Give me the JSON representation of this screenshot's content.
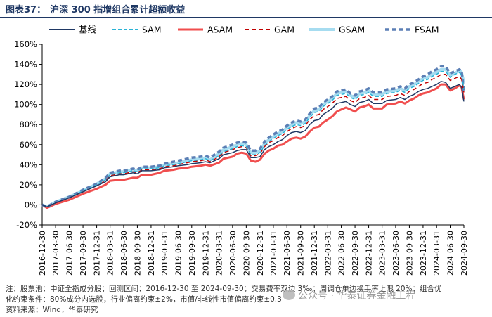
{
  "figure": {
    "number": "图表37：",
    "title": "沪深 300 指增组合累计超额收益"
  },
  "notes": [
    "注：股票池：中证全指成分股；回测区间：2016-12-30 至 2024-09-30；交易费率双边 3‰；周调仓单边换手率上限 20%；组合优",
    "化约束条件：80%成分内选股，行业偏离约束±2%，市值/非线性市值偏离约束±0.3",
    "资料来源：Wind，华泰研究"
  ],
  "watermark": "公众号 · 华泰证券金融工程",
  "chart_data": {
    "type": "line",
    "ylim": [
      -0.2,
      1.6
    ],
    "yticks": [
      -0.2,
      0.0,
      0.2,
      0.4,
      0.6,
      0.8,
      1.0,
      1.2,
      1.4,
      1.6
    ],
    "ytick_labels": [
      "-20%",
      "0%",
      "20%",
      "40%",
      "60%",
      "80%",
      "100%",
      "120%",
      "140%",
      "160%"
    ],
    "x_start": "2016-12-30",
    "x_end": "2024-09-30",
    "xtick_labels": [
      "2016-12-30",
      "2017-03-30",
      "2017-06-30",
      "2017-09-30",
      "2017-12-31",
      "2018-03-31",
      "2018-06-30",
      "2018-09-30",
      "2018-12-31",
      "2019-03-31",
      "2019-06-30",
      "2019-09-30",
      "2019-12-31",
      "2020-03-31",
      "2020-06-30",
      "2020-09-30",
      "2020-12-31",
      "2021-03-31",
      "2021-06-30",
      "2021-09-30",
      "2021-12-31",
      "2022-03-31",
      "2022-06-30",
      "2022-09-30",
      "2022-12-31",
      "2023-03-31",
      "2023-06-30",
      "2023-09-30",
      "2023-12-31",
      "2024-03-31",
      "2024-06-30",
      "2024-09-30"
    ],
    "legend_position": "top",
    "grid": false,
    "base_dates": [
      "2016-12-30",
      "2017-01-31",
      "2017-03-31",
      "2017-06-30",
      "2017-09-30",
      "2017-12-31",
      "2018-02-28",
      "2018-03-31",
      "2018-05-31",
      "2018-06-30",
      "2018-08-31",
      "2018-09-30",
      "2018-10-31",
      "2018-12-31",
      "2019-02-28",
      "2019-03-31",
      "2019-05-31",
      "2019-06-30",
      "2019-08-31",
      "2019-09-30",
      "2019-11-30",
      "2019-12-31",
      "2020-01-31",
      "2020-03-31",
      "2020-04-30",
      "2020-06-30",
      "2020-07-31",
      "2020-08-31",
      "2020-09-30",
      "2020-10-31",
      "2020-11-30",
      "2020-12-31",
      "2021-01-31",
      "2021-02-28",
      "2021-03-31",
      "2021-04-30",
      "2021-05-31",
      "2021-06-30",
      "2021-07-31",
      "2021-08-31",
      "2021-09-30",
      "2021-10-31",
      "2021-11-30",
      "2021-12-31",
      "2022-01-31",
      "2022-02-28",
      "2022-03-31",
      "2022-04-30",
      "2022-05-31",
      "2022-06-30",
      "2022-07-31",
      "2022-08-31",
      "2022-09-30",
      "2022-10-31",
      "2022-11-30",
      "2022-12-31",
      "2023-01-31",
      "2023-03-31",
      "2023-04-30",
      "2023-06-30",
      "2023-07-31",
      "2023-08-31",
      "2023-09-30",
      "2023-10-31",
      "2023-11-30",
      "2023-12-31",
      "2024-01-31",
      "2024-02-29",
      "2024-03-31",
      "2024-04-30",
      "2024-05-31",
      "2024-06-30",
      "2024-07-31",
      "2024-08-31",
      "2024-09-15",
      "2024-09-30"
    ],
    "series": [
      {
        "name": "基线",
        "color": "#1f3864",
        "style": "solid",
        "values": [
          0.0,
          -0.02,
          0.02,
          0.07,
          0.13,
          0.19,
          0.23,
          0.28,
          0.3,
          0.3,
          0.32,
          0.31,
          0.34,
          0.34,
          0.35,
          0.37,
          0.38,
          0.39,
          0.4,
          0.41,
          0.42,
          0.43,
          0.42,
          0.46,
          0.5,
          0.52,
          0.54,
          0.55,
          0.55,
          0.47,
          0.47,
          0.48,
          0.55,
          0.58,
          0.6,
          0.63,
          0.65,
          0.69,
          0.72,
          0.73,
          0.72,
          0.74,
          0.8,
          0.84,
          0.85,
          0.9,
          0.93,
          0.96,
          1.01,
          1.02,
          1.03,
          1.0,
          0.98,
          1.02,
          1.03,
          1.05,
          1.01,
          1.01,
          1.04,
          1.05,
          1.07,
          1.05,
          1.08,
          1.1,
          1.13,
          1.15,
          1.16,
          1.18,
          1.2,
          1.23,
          1.22,
          1.16,
          1.18,
          1.2,
          1.17,
          1.03
        ]
      },
      {
        "name": "SAM",
        "color": "#2ab3d6",
        "style": "dash",
        "dash": "5,3",
        "values": [
          0.0,
          -0.02,
          0.02,
          0.07,
          0.14,
          0.2,
          0.25,
          0.3,
          0.32,
          0.32,
          0.34,
          0.33,
          0.36,
          0.36,
          0.37,
          0.39,
          0.4,
          0.41,
          0.43,
          0.44,
          0.45,
          0.46,
          0.44,
          0.49,
          0.53,
          0.56,
          0.58,
          0.59,
          0.58,
          0.5,
          0.5,
          0.52,
          0.59,
          0.63,
          0.66,
          0.69,
          0.71,
          0.75,
          0.78,
          0.8,
          0.79,
          0.81,
          0.87,
          0.92,
          0.93,
          0.98,
          1.01,
          1.04,
          1.09,
          1.1,
          1.11,
          1.07,
          1.05,
          1.09,
          1.1,
          1.12,
          1.08,
          1.08,
          1.11,
          1.12,
          1.14,
          1.12,
          1.16,
          1.18,
          1.21,
          1.24,
          1.25,
          1.28,
          1.3,
          1.33,
          1.33,
          1.27,
          1.3,
          1.32,
          1.29,
          1.16
        ]
      },
      {
        "name": "ASAM",
        "color": "#f04e4e",
        "style": "solid",
        "width": 3,
        "values": [
          0.0,
          -0.03,
          0.01,
          0.05,
          0.11,
          0.16,
          0.2,
          0.24,
          0.25,
          0.25,
          0.27,
          0.27,
          0.3,
          0.3,
          0.32,
          0.34,
          0.35,
          0.36,
          0.37,
          0.38,
          0.39,
          0.4,
          0.39,
          0.42,
          0.46,
          0.48,
          0.51,
          0.52,
          0.51,
          0.44,
          0.43,
          0.45,
          0.51,
          0.54,
          0.56,
          0.59,
          0.6,
          0.63,
          0.66,
          0.67,
          0.66,
          0.68,
          0.73,
          0.77,
          0.78,
          0.82,
          0.85,
          0.88,
          0.93,
          0.95,
          0.97,
          0.95,
          0.93,
          0.97,
          0.98,
          1.0,
          0.96,
          0.96,
          1.0,
          1.01,
          1.03,
          1.01,
          1.04,
          1.06,
          1.09,
          1.11,
          1.12,
          1.14,
          1.16,
          1.2,
          1.2,
          1.14,
          1.16,
          1.19,
          1.17,
          1.05
        ]
      },
      {
        "name": "GAM",
        "color": "#c00000",
        "style": "dash",
        "dash": "6,4",
        "values": [
          0.0,
          -0.02,
          0.02,
          0.07,
          0.13,
          0.19,
          0.24,
          0.29,
          0.31,
          0.31,
          0.33,
          0.32,
          0.35,
          0.35,
          0.36,
          0.38,
          0.39,
          0.4,
          0.42,
          0.43,
          0.44,
          0.45,
          0.43,
          0.48,
          0.52,
          0.55,
          0.57,
          0.58,
          0.57,
          0.49,
          0.49,
          0.51,
          0.58,
          0.62,
          0.64,
          0.67,
          0.69,
          0.73,
          0.76,
          0.78,
          0.77,
          0.79,
          0.85,
          0.89,
          0.9,
          0.95,
          0.98,
          1.01,
          1.06,
          1.07,
          1.08,
          1.04,
          1.02,
          1.06,
          1.07,
          1.09,
          1.05,
          1.05,
          1.08,
          1.09,
          1.11,
          1.09,
          1.13,
          1.15,
          1.18,
          1.21,
          1.22,
          1.25,
          1.27,
          1.3,
          1.3,
          1.24,
          1.26,
          1.28,
          1.25,
          1.12
        ]
      },
      {
        "name": "GSAM",
        "color": "#a6dcf0",
        "style": "solid",
        "width": 4,
        "values": [
          0.0,
          -0.02,
          0.03,
          0.08,
          0.14,
          0.21,
          0.26,
          0.31,
          0.33,
          0.33,
          0.35,
          0.34,
          0.37,
          0.37,
          0.38,
          0.4,
          0.41,
          0.42,
          0.44,
          0.45,
          0.46,
          0.47,
          0.45,
          0.51,
          0.55,
          0.58,
          0.6,
          0.61,
          0.6,
          0.52,
          0.52,
          0.54,
          0.61,
          0.65,
          0.68,
          0.71,
          0.73,
          0.77,
          0.8,
          0.82,
          0.81,
          0.83,
          0.89,
          0.94,
          0.95,
          1.0,
          1.03,
          1.06,
          1.11,
          1.12,
          1.13,
          1.09,
          1.07,
          1.11,
          1.12,
          1.14,
          1.1,
          1.1,
          1.13,
          1.14,
          1.16,
          1.14,
          1.18,
          1.2,
          1.23,
          1.26,
          1.27,
          1.3,
          1.32,
          1.35,
          1.35,
          1.29,
          1.31,
          1.34,
          1.32,
          1.22
        ]
      },
      {
        "name": "FSAM",
        "color": "#5b7fb5",
        "style": "dash",
        "dash": "6,4",
        "width": 3.5,
        "values": [
          0.0,
          -0.02,
          0.03,
          0.08,
          0.15,
          0.21,
          0.27,
          0.32,
          0.34,
          0.34,
          0.36,
          0.35,
          0.38,
          0.38,
          0.39,
          0.41,
          0.43,
          0.44,
          0.46,
          0.47,
          0.48,
          0.49,
          0.47,
          0.53,
          0.57,
          0.6,
          0.62,
          0.63,
          0.62,
          0.54,
          0.54,
          0.56,
          0.63,
          0.67,
          0.7,
          0.73,
          0.75,
          0.79,
          0.82,
          0.84,
          0.83,
          0.85,
          0.91,
          0.96,
          0.97,
          1.02,
          1.05,
          1.08,
          1.13,
          1.14,
          1.15,
          1.11,
          1.09,
          1.13,
          1.14,
          1.16,
          1.12,
          1.12,
          1.15,
          1.16,
          1.18,
          1.16,
          1.2,
          1.22,
          1.25,
          1.28,
          1.3,
          1.33,
          1.35,
          1.38,
          1.38,
          1.31,
          1.33,
          1.35,
          1.33,
          1.13
        ]
      }
    ]
  }
}
